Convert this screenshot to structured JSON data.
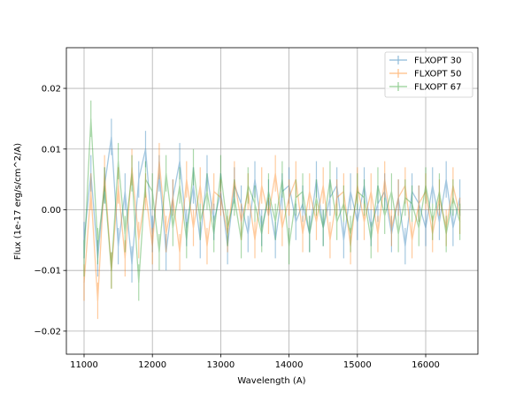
{
  "chart_data": {
    "type": "line",
    "title": "",
    "xlabel": "Wavelength (A)",
    "ylabel": "Flux (1e-17 erg/s/cm^2/A)",
    "xlim": [
      10741,
      16764
    ],
    "ylim": [
      -0.0238,
      0.0267
    ],
    "xticks": [
      11000,
      12000,
      13000,
      14000,
      15000,
      16000
    ],
    "xtick_labels": [
      "11000",
      "12000",
      "13000",
      "14000",
      "15000",
      "16000"
    ],
    "yticks": [
      0.02,
      0.01,
      0.0,
      -0.01,
      -0.02
    ],
    "ytick_labels": [
      "0.02",
      "0.01",
      "0.00",
      "−0.01",
      "−0.02"
    ],
    "grid": true,
    "legend_position": "top-right",
    "x_start": 11000,
    "x_step": 100,
    "series": [
      {
        "name": "FLXOPT 30",
        "color": "#1f77b4",
        "err": 0.003,
        "values": [
          -0.005,
          0.006,
          -0.008,
          0.004,
          0.012,
          -0.006,
          0.003,
          -0.009,
          0.005,
          0.01,
          -0.004,
          0.006,
          -0.007,
          0.002,
          0.008,
          -0.003,
          0.004,
          -0.005,
          0.006,
          -0.002,
          0.003,
          -0.006,
          0.004,
          0.001,
          -0.004,
          0.005,
          -0.003,
          0.002,
          -0.005,
          0.003,
          0.004,
          -0.002,
          0.001,
          -0.004,
          0.005,
          -0.003,
          0.002,
          0.004,
          -0.005,
          0.003,
          -0.002,
          0.004,
          -0.003,
          0.001,
          0.003,
          -0.004,
          0.002,
          -0.006,
          0.003,
          0.001,
          -0.003,
          0.004,
          -0.002,
          0.005,
          -0.003,
          0.002
        ]
      },
      {
        "name": "FLXOPT 50",
        "color": "#ff7f0e",
        "err": 0.003,
        "values": [
          -0.012,
          0.003,
          -0.015,
          0.006,
          -0.01,
          0.004,
          -0.008,
          0.007,
          -0.005,
          0.003,
          -0.006,
          0.008,
          -0.004,
          0.002,
          -0.007,
          0.005,
          -0.003,
          0.004,
          -0.006,
          0.003,
          0.002,
          -0.004,
          0.005,
          -0.002,
          0.003,
          -0.005,
          0.004,
          -0.001,
          0.006,
          -0.003,
          0.002,
          0.005,
          -0.004,
          0.003,
          -0.002,
          0.004,
          -0.005,
          0.002,
          0.003,
          -0.006,
          0.004,
          -0.002,
          0.003,
          -0.004,
          0.005,
          -0.003,
          0.002,
          0.004,
          -0.005,
          0.001,
          0.003,
          -0.004,
          0.002,
          -0.003,
          0.004,
          -0.001
        ]
      },
      {
        "name": "FLXOPT 67",
        "color": "#2ca02c",
        "err": 0.003,
        "values": [
          -0.008,
          0.015,
          -0.006,
          0.004,
          -0.01,
          0.008,
          -0.004,
          0.006,
          -0.012,
          0.005,
          0.003,
          -0.007,
          0.006,
          -0.003,
          0.004,
          -0.005,
          0.007,
          -0.002,
          0.003,
          -0.004,
          0.006,
          -0.003,
          0.002,
          -0.005,
          0.004,
          0.001,
          -0.004,
          0.003,
          -0.002,
          0.005,
          -0.006,
          0.002,
          0.003,
          -0.004,
          0.002,
          -0.003,
          0.005,
          -0.002,
          0.001,
          -0.004,
          0.003,
          0.002,
          -0.005,
          0.004,
          -0.001,
          0.003,
          -0.004,
          0.002,
          0.001,
          -0.003,
          0.004,
          -0.002,
          0.003,
          -0.004,
          0.002,
          -0.002
        ]
      }
    ]
  }
}
